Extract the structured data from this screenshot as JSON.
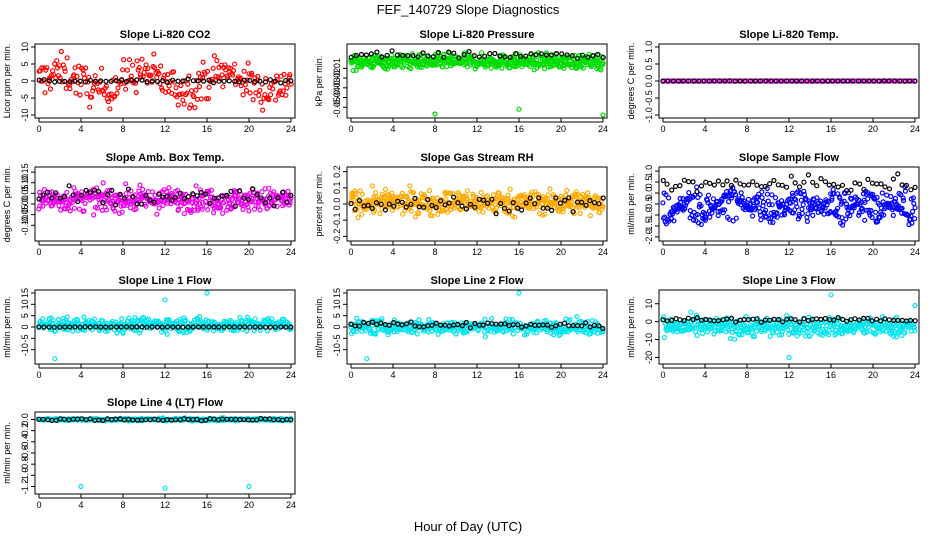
{
  "figure": {
    "title": "FEF_140729  Slope Diagnostics",
    "xlabel": "Hour of Day (UTC)"
  },
  "chart_data": [
    {
      "type": "scatter",
      "title": "Slope Li-820 CO2",
      "ylabel": "Licor ppm per min.",
      "xlim": [
        0,
        24
      ],
      "ylim": [
        -10,
        10
      ],
      "xticks": [
        0,
        4,
        8,
        12,
        16,
        20,
        24
      ],
      "yticks": [
        -10,
        -5,
        0,
        5,
        10
      ],
      "ytick_labels": [
        "-10",
        "-5",
        "0",
        "5",
        "10"
      ],
      "grid": false,
      "series": [
        {
          "color": "#ff0000",
          "marker": "circle",
          "pattern": "sin",
          "center": 0,
          "amp": 2.5,
          "noise": 6,
          "n": 260
        },
        {
          "color": "#000000",
          "marker": "circle",
          "pattern": "flat",
          "center": 0,
          "amp": 0,
          "noise": 0.5,
          "n": 50
        }
      ]
    },
    {
      "type": "scatter",
      "title": "Slope Li-820 Pressure",
      "ylabel": "kPa per min.",
      "xlim": [
        0,
        24
      ],
      "ylim": [
        -0.058,
        0.012
      ],
      "xticks": [
        0,
        4,
        8,
        12,
        16,
        20,
        24
      ],
      "yticks": [
        -0.05,
        -0.04,
        -0.03,
        -0.02,
        -0.01
      ],
      "ytick_labels": [
        "-0.05",
        "-0.04",
        "-0.03",
        "-0.02",
        "-0.01"
      ],
      "grid": false,
      "series": [
        {
          "color": "#00dd00",
          "marker": "circle",
          "pattern": "band",
          "center": -0.003,
          "amp": 0,
          "noise": 0.008,
          "n": 520,
          "outliers": [
            [
              8,
              -0.057
            ],
            [
              16,
              -0.052
            ],
            [
              24,
              -0.058
            ],
            [
              0.5,
              -0.012
            ]
          ]
        },
        {
          "color": "#000000",
          "marker": "circle",
          "pattern": "flat",
          "center": 0.004,
          "amp": 0,
          "noise": 0.004,
          "n": 50
        }
      ]
    },
    {
      "type": "scatter",
      "title": "Slope Li-820 Temp.",
      "ylabel": "degrees C per min.",
      "xlim": [
        0,
        24
      ],
      "ylim": [
        -1,
        1
      ],
      "xticks": [
        0,
        4,
        8,
        12,
        16,
        20,
        24
      ],
      "yticks": [
        -1,
        -0.5,
        0,
        0.5,
        1
      ],
      "ytick_labels": [
        "-1.0",
        "-0.5",
        "0.0",
        "0.5",
        "1.0"
      ],
      "grid": false,
      "series": [
        {
          "color": "#ff00ff",
          "marker": "circle",
          "pattern": "flat",
          "center": 0,
          "amp": 0,
          "noise": 0.003,
          "n": 130
        },
        {
          "color": "#000000",
          "marker": "circle",
          "pattern": "flat",
          "center": 0,
          "amp": 0,
          "noise": 0.003,
          "n": 50
        }
      ]
    },
    {
      "type": "scatter",
      "title": "Slope Amb. Box Temp.",
      "ylabel": "degrees C per min.",
      "xlim": [
        0,
        24
      ],
      "ylim": [
        -0.16,
        0.16
      ],
      "xticks": [
        0,
        4,
        8,
        12,
        16,
        20,
        24
      ],
      "yticks": [
        -0.1,
        -0.05,
        0,
        0.05,
        0.1,
        0.15
      ],
      "ytick_labels": [
        "-0.10",
        "-0.05",
        "0.00",
        "0.05",
        "0.10",
        "0.15"
      ],
      "grid": false,
      "series": [
        {
          "color": "#ee00ee",
          "marker": "circle",
          "pattern": "band",
          "center": 0.02,
          "amp": 0,
          "noise": 0.06,
          "n": 420
        },
        {
          "color": "#000000",
          "marker": "circle",
          "pattern": "flat",
          "center": 0.03,
          "amp": 0,
          "noise": 0.05,
          "n": 60
        }
      ]
    },
    {
      "type": "scatter",
      "title": "Slope Gas Stream RH",
      "ylabel": "percent per min.",
      "xlim": [
        0,
        24
      ],
      "ylim": [
        -0.21,
        0.21
      ],
      "xticks": [
        0,
        4,
        8,
        12,
        16,
        20,
        24
      ],
      "yticks": [
        -0.2,
        -0.1,
        0,
        0.1,
        0.2
      ],
      "ytick_labels": [
        "-0.2",
        "-0.1",
        "0.0",
        "0.1",
        "0.2"
      ],
      "grid": false,
      "series": [
        {
          "color": "#ffaa00",
          "marker": "circle",
          "pattern": "band",
          "center": 0.01,
          "amp": 0,
          "noise": 0.08,
          "n": 460
        },
        {
          "color": "#000000",
          "marker": "circle",
          "pattern": "flat",
          "center": 0.0,
          "amp": 0,
          "noise": 0.05,
          "n": 60
        }
      ]
    },
    {
      "type": "scatter",
      "title": "Slope Sample Flow",
      "ylabel": "ml/min per min.",
      "xlim": [
        0,
        24
      ],
      "ylim": [
        -2.05,
        1.05
      ],
      "xticks": [
        0,
        4,
        8,
        12,
        16,
        20,
        24
      ],
      "yticks": [
        -2,
        -1.5,
        -1,
        -0.5,
        0,
        0.5,
        1
      ],
      "ytick_labels": [
        "-2.0",
        "-1.5",
        "-1.0",
        "-0.5",
        "0.0",
        "0.5",
        "1.0"
      ],
      "grid": false,
      "series": [
        {
          "color": "#0000ff",
          "marker": "circle",
          "pattern": "saw",
          "center": -0.6,
          "amp": 0.7,
          "noise": 0.4,
          "n": 420
        },
        {
          "color": "#000000",
          "marker": "circle",
          "pattern": "flat",
          "center": 0.4,
          "amp": 0,
          "noise": 0.35,
          "n": 60
        }
      ]
    },
    {
      "type": "scatter",
      "title": "Slope Line 1 Flow",
      "ylabel": "ml/min per min.",
      "xlim": [
        0,
        24
      ],
      "ylim": [
        -15,
        15
      ],
      "xticks": [
        0,
        4,
        8,
        12,
        16,
        20,
        24
      ],
      "yticks": [
        -10,
        -5,
        0,
        5,
        10,
        15
      ],
      "ytick_labels": [
        "-10",
        "-5",
        "0",
        "5",
        "10",
        "15"
      ],
      "grid": false,
      "series": [
        {
          "color": "#00e5ee",
          "marker": "circle",
          "pattern": "band",
          "center": 1,
          "amp": 0,
          "noise": 3.5,
          "n": 400,
          "outliers": [
            [
              1.5,
              -14
            ],
            [
              16,
              15
            ],
            [
              12,
              12
            ]
          ]
        },
        {
          "color": "#000000",
          "marker": "circle",
          "pattern": "flat",
          "center": 0,
          "amp": 0,
          "noise": 0.1,
          "n": 50
        }
      ]
    },
    {
      "type": "scatter",
      "title": "Slope Line 2 Flow",
      "ylabel": "ml/min per min.",
      "xlim": [
        0,
        24
      ],
      "ylim": [
        -15,
        15
      ],
      "xticks": [
        0,
        4,
        8,
        12,
        16,
        20,
        24
      ],
      "yticks": [
        -10,
        -5,
        0,
        5,
        10,
        15
      ],
      "ytick_labels": [
        "-10",
        "-5",
        "0",
        "5",
        "10",
        "15"
      ],
      "grid": false,
      "series": [
        {
          "color": "#00e5ee",
          "marker": "circle",
          "pattern": "band",
          "center": 0,
          "amp": 0,
          "noise": 3.5,
          "n": 400,
          "outliers": [
            [
              1.5,
              -14
            ],
            [
              16,
              15
            ]
          ]
        },
        {
          "color": "#000000",
          "marker": "circle",
          "pattern": "flat",
          "center": 1,
          "amp": 0,
          "noise": 1.5,
          "n": 60
        }
      ]
    },
    {
      "type": "scatter",
      "title": "Slope Line 3 Flow",
      "ylabel": "ml/min per min.",
      "xlim": [
        0,
        24
      ],
      "ylim": [
        -22,
        16
      ],
      "xticks": [
        0,
        4,
        8,
        12,
        16,
        20,
        24
      ],
      "yticks": [
        -20,
        -10,
        0,
        10
      ],
      "ytick_labels": [
        "-20",
        "-10",
        "0",
        "10"
      ],
      "grid": false,
      "series": [
        {
          "color": "#00e5ee",
          "marker": "circle",
          "pattern": "band",
          "center": -3,
          "amp": 0,
          "noise": 6,
          "n": 420,
          "outliers": [
            [
              12,
              -20
            ],
            [
              16,
              15
            ],
            [
              24,
              9
            ]
          ]
        },
        {
          "color": "#000000",
          "marker": "circle",
          "pattern": "flat",
          "center": 1,
          "amp": 0,
          "noise": 1.2,
          "n": 60
        }
      ]
    },
    {
      "type": "scatter",
      "title": "Slope Line 4 (LT) Flow",
      "ylabel": "ml/min per min.",
      "xlim": [
        0,
        24
      ],
      "ylim": [
        -1.28,
        0.08
      ],
      "xticks": [
        0,
        4,
        8,
        12,
        16,
        20,
        24
      ],
      "yticks": [
        -1.2,
        -1,
        -0.8,
        -0.6,
        -0.4,
        -0.2,
        0
      ],
      "ytick_labels": [
        "-1.2",
        "-1.0",
        "-0.8",
        "-0.6",
        "-0.4",
        "-0.2",
        "0.0"
      ],
      "grid": false,
      "series": [
        {
          "color": "#00e5ee",
          "marker": "circle",
          "pattern": "band",
          "center": 0,
          "amp": 0,
          "noise": 0.025,
          "n": 320,
          "outliers": [
            [
              4,
              -1.2
            ],
            [
              12,
              -1.23
            ],
            [
              20,
              -1.2
            ]
          ]
        },
        {
          "color": "#000000",
          "marker": "circle",
          "pattern": "flat",
          "center": 0,
          "amp": 0,
          "noise": 0.02,
          "n": 60
        }
      ]
    }
  ]
}
